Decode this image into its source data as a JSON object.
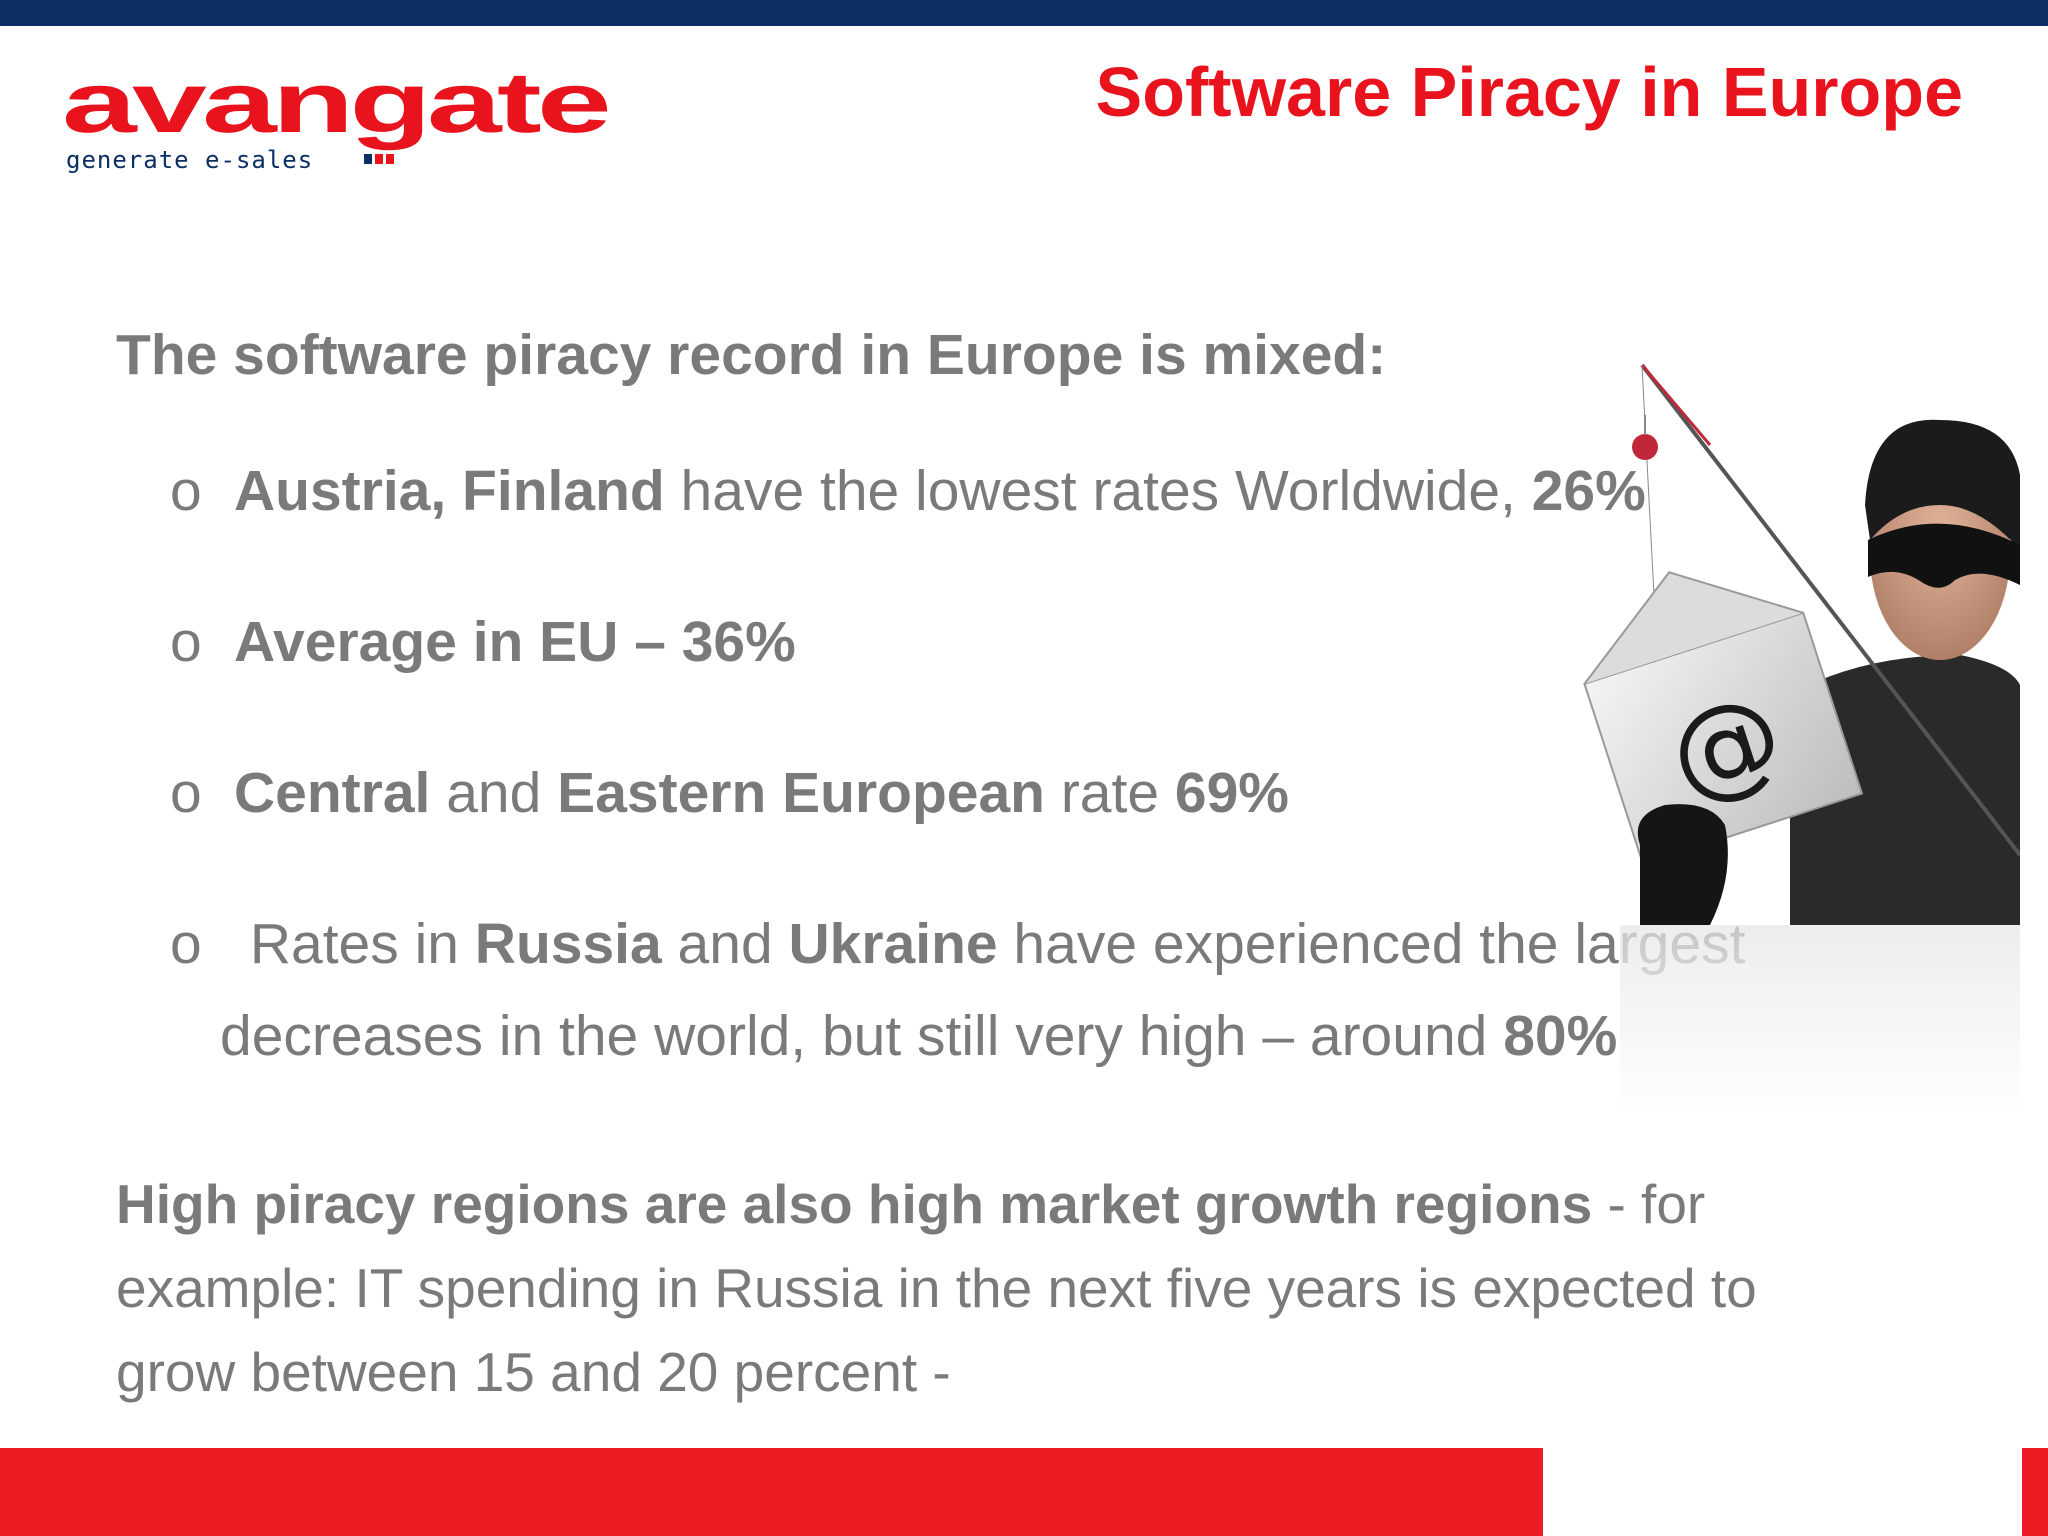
{
  "header": {
    "logo_word": "avangate",
    "logo_tagline": "generate e-sales",
    "title": "Software Piracy in Europe"
  },
  "content": {
    "intro": "The software piracy record in Europe is mixed:",
    "bullet_marker": "o",
    "bullets": [
      {
        "bold1": "Austria, Finland",
        "text1": " have the lowest rates Worldwide,  ",
        "bold2": "26%"
      },
      {
        "bold1": "Average in EU – 36%"
      },
      {
        "bold1": "Central",
        "text1": " and ",
        "bold2": "Eastern European",
        "text2": " rate ",
        "bold3": "69%"
      },
      {
        "text1": " Rates in ",
        "bold1": "Russia",
        "text2": " and ",
        "bold2": "Ukraine",
        "text3": " have experienced the largest",
        "line2_text": "decreases in the world, but still very high – around ",
        "line2_bold": "80%"
      }
    ],
    "closing_bold": "High piracy regions are also high market growth regions",
    "closing_text": " - for example: IT spending in Russia in the next five years is expected to grow between 15 and 20 percent -"
  },
  "colors": {
    "top_bar": "#0b2f63",
    "title_red": "#e8131d",
    "bottom_bar": "#ed1c24",
    "body_text": "#7a7a7c"
  },
  "illustration": {
    "icon": "masked-thief-phishing-icon",
    "envelope_symbol": "@"
  }
}
